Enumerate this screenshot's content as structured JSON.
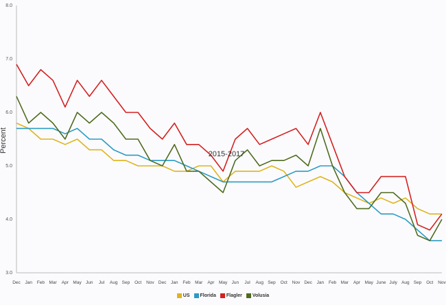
{
  "chart_data": {
    "type": "line",
    "title": "",
    "xlabel": "2015-2017",
    "ylabel": "Percent",
    "ylim": [
      3.0,
      8.0
    ],
    "y_ticks": [
      "3.0",
      "4.0",
      "5.0",
      "6.0",
      "7.0",
      "8.0"
    ],
    "grid": false,
    "legend_position": "bottom",
    "categories": [
      "Dec",
      "Jan",
      "Feb",
      "Mar",
      "Apr",
      "May",
      "Jun",
      "Jul",
      "Aug",
      "Sep",
      "Oct",
      "Nov",
      "Dec",
      "Jan",
      "Feb",
      "Mar",
      "Apr",
      "May",
      "Jun",
      "Jul",
      "Aug",
      "Sep",
      "Oct",
      "Nov",
      "Dec",
      "Jan",
      "Feb",
      "Mar",
      "Apr",
      "May",
      "June",
      "July",
      "Aug",
      "Sep",
      "Oct",
      "Nov"
    ],
    "series": [
      {
        "name": "US",
        "color": "#e0b31c",
        "values": [
          5.8,
          5.7,
          5.5,
          5.5,
          5.4,
          5.5,
          5.3,
          5.3,
          5.1,
          5.1,
          5.0,
          5.0,
          5.0,
          4.9,
          4.9,
          5.0,
          5.0,
          4.7,
          4.9,
          4.9,
          4.9,
          5.0,
          4.9,
          4.6,
          4.7,
          4.8,
          4.7,
          4.5,
          4.4,
          4.3,
          4.4,
          4.3,
          4.4,
          4.2,
          4.1,
          4.1
        ]
      },
      {
        "name": "Florida",
        "color": "#2a9bc4",
        "values": [
          5.7,
          5.7,
          5.7,
          5.7,
          5.6,
          5.7,
          5.5,
          5.5,
          5.3,
          5.2,
          5.2,
          5.1,
          5.1,
          5.1,
          5.0,
          4.9,
          4.8,
          4.7,
          4.7,
          4.7,
          4.7,
          4.7,
          4.8,
          4.9,
          4.9,
          5.0,
          5.0,
          4.8,
          4.5,
          4.3,
          4.1,
          4.1,
          4.0,
          3.8,
          3.6,
          3.6
        ]
      },
      {
        "name": "Flagler",
        "color": "#d42020",
        "values": [
          6.9,
          6.5,
          6.8,
          6.6,
          6.1,
          6.6,
          6.3,
          6.6,
          6.3,
          6.0,
          6.0,
          5.7,
          5.5,
          5.8,
          5.4,
          5.4,
          5.2,
          4.9,
          5.5,
          5.7,
          5.4,
          5.5,
          5.6,
          5.7,
          5.4,
          6.0,
          5.4,
          4.8,
          4.5,
          4.5,
          4.8,
          4.8,
          4.8,
          3.9,
          3.8,
          4.1
        ]
      },
      {
        "name": "Volusia",
        "color": "#4f6b1f",
        "values": [
          6.3,
          5.8,
          6.0,
          5.8,
          5.5,
          6.0,
          5.8,
          6.0,
          5.8,
          5.5,
          5.5,
          5.1,
          5.0,
          5.4,
          4.9,
          4.9,
          4.7,
          4.5,
          5.1,
          5.3,
          5.0,
          5.1,
          5.1,
          5.2,
          5.0,
          5.7,
          5.0,
          4.5,
          4.2,
          4.2,
          4.5,
          4.5,
          4.3,
          3.7,
          3.6,
          4.0
        ]
      }
    ]
  }
}
